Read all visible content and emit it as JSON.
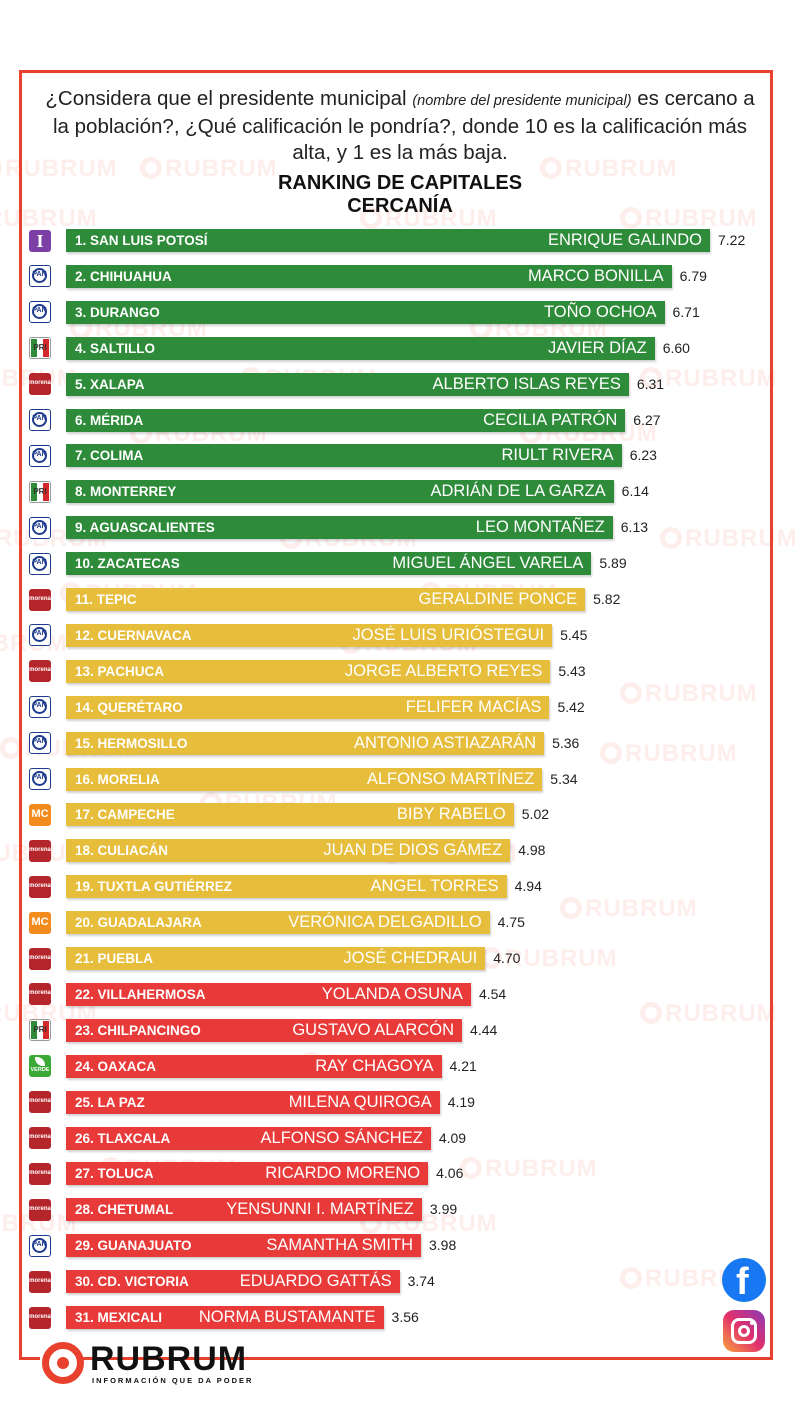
{
  "question": {
    "before": "¿Considera que el presidente municipal ",
    "note": "(nombre del presidente municipal)",
    "after": " es cercano a la población?, ¿Qué calificación le pondría?, donde 10 es la calificación más alta, y 1 es la más baja."
  },
  "watermark_text": "RUBRUM",
  "brand": {
    "name": "RUBRUM",
    "tagline": "INFORMACIÓN QUE DA PODER"
  },
  "social": {
    "facebook_glyph": "f",
    "icons": [
      "facebook-icon",
      "instagram-icon"
    ]
  },
  "colors": {
    "green": "#2e8b3a",
    "yellow": "#e7bd3c",
    "red": "#e93a3a",
    "accent": "#e8412d"
  },
  "party_logos": {
    "pan": "PAN",
    "morena": "morena",
    "pri": "PRI",
    "ind": "I",
    "mc": "MC",
    "verde": "VERDE"
  },
  "chart_data": {
    "type": "bar",
    "orientation": "horizontal",
    "title": "RANKING DE CAPITALES",
    "subtitle": "CERCANÍA",
    "xlim": [
      0,
      7.22
    ],
    "color_groups": {
      "green": [
        1,
        10
      ],
      "yellow": [
        11,
        21
      ],
      "red": [
        22,
        31
      ]
    },
    "bars": [
      {
        "rank": "1. SAN LUIS POTOSÍ",
        "person": "ENRIQUE GALINDO",
        "value": 7.22,
        "party": "ind",
        "group": "green"
      },
      {
        "rank": "2. CHIHUAHUA",
        "person": "MARCO BONILLA",
        "value": 6.79,
        "party": "pan",
        "group": "green"
      },
      {
        "rank": "3. DURANGO",
        "person": "TOÑO OCHOA",
        "value": 6.71,
        "party": "pan",
        "group": "green"
      },
      {
        "rank": "4. SALTILLO",
        "person": "JAVIER DÍAZ",
        "value": 6.6,
        "party": "pri",
        "group": "green"
      },
      {
        "rank": "5. XALAPA",
        "person": "ALBERTO ISLAS REYES",
        "value": 6.31,
        "party": "morena",
        "group": "green"
      },
      {
        "rank": "6. MÉRIDA",
        "person": "CECILIA PATRÓN",
        "value": 6.27,
        "party": "pan",
        "group": "green"
      },
      {
        "rank": "7. COLIMA",
        "person": "RIULT RIVERA",
        "value": 6.23,
        "party": "pan",
        "group": "green"
      },
      {
        "rank": "8. MONTERREY",
        "person": "ADRIÁN DE LA GARZA",
        "value": 6.14,
        "party": "pri",
        "group": "green"
      },
      {
        "rank": "9. AGUASCALIENTES",
        "person": "LEO MONTAÑEZ",
        "value": 6.13,
        "party": "pan",
        "group": "green"
      },
      {
        "rank": "10. ZACATECAS",
        "person": "MIGUEL ÁNGEL VARELA",
        "value": 5.89,
        "party": "pan",
        "group": "green"
      },
      {
        "rank": "11. TEPIC",
        "person": "GERALDINE PONCE",
        "value": 5.82,
        "party": "morena",
        "group": "yellow"
      },
      {
        "rank": "12. CUERNAVACA",
        "person": "JOSÉ LUIS URIÓSTEGUI",
        "value": 5.45,
        "party": "pan",
        "group": "yellow"
      },
      {
        "rank": "13. PACHUCA",
        "person": "JORGE ALBERTO REYES",
        "value": 5.43,
        "party": "morena",
        "group": "yellow"
      },
      {
        "rank": "14. QUERÉTARO",
        "person": "FELIFER MACÍAS",
        "value": 5.42,
        "party": "pan",
        "group": "yellow"
      },
      {
        "rank": "15. HERMOSILLO",
        "person": "ANTONIO ASTIAZARÁN",
        "value": 5.36,
        "party": "pan",
        "group": "yellow"
      },
      {
        "rank": "16. MORELIA",
        "person": "ALFONSO MARTÍNEZ",
        "value": 5.34,
        "party": "pan",
        "group": "yellow"
      },
      {
        "rank": "17. CAMPECHE",
        "person": "BIBY RABELO",
        "value": 5.02,
        "party": "mc",
        "group": "yellow"
      },
      {
        "rank": "18. CULIACÁN",
        "person": "JUAN DE DIOS GÁMEZ",
        "value": 4.98,
        "party": "morena",
        "group": "yellow"
      },
      {
        "rank": "19. TUXTLA GUTIÉRREZ",
        "person": "ANGEL TORRES",
        "value": 4.94,
        "party": "morena",
        "group": "yellow"
      },
      {
        "rank": "20. GUADALAJARA",
        "person": "VERÓNICA DELGADILLO",
        "value": 4.75,
        "party": "mc",
        "group": "yellow"
      },
      {
        "rank": "21. PUEBLA",
        "person": "JOSÉ CHEDRAUI",
        "value": 4.7,
        "party": "morena",
        "group": "yellow"
      },
      {
        "rank": "22. VILLAHERMOSA",
        "person": "YOLANDA OSUNA",
        "value": 4.54,
        "party": "morena",
        "group": "red"
      },
      {
        "rank": "23. CHILPANCINGO",
        "person": "GUSTAVO ALARCÓN",
        "value": 4.44,
        "party": "pri",
        "group": "red"
      },
      {
        "rank": "24. OAXACA",
        "person": "RAY CHAGOYA",
        "value": 4.21,
        "party": "verde",
        "group": "red"
      },
      {
        "rank": "25. LA PAZ",
        "person": "MILENA QUIROGA",
        "value": 4.19,
        "party": "morena",
        "group": "red"
      },
      {
        "rank": "26. TLAXCALA",
        "person": "ALFONSO SÁNCHEZ",
        "value": 4.09,
        "party": "morena",
        "group": "red"
      },
      {
        "rank": "27. TOLUCA",
        "person": "RICARDO MORENO",
        "value": 4.06,
        "party": "morena",
        "group": "red"
      },
      {
        "rank": "28. CHETUMAL",
        "person": "YENSUNNI I. MARTÍNEZ",
        "value": 3.99,
        "party": "morena",
        "group": "red"
      },
      {
        "rank": "29. GUANAJUATO",
        "person": "SAMANTHA SMITH",
        "value": 3.98,
        "party": "pan",
        "group": "red"
      },
      {
        "rank": "30. CD. VICTORIA",
        "person": "EDUARDO GATTÁS",
        "value": 3.74,
        "party": "morena",
        "group": "red"
      },
      {
        "rank": "31. MEXICALI",
        "person": "NORMA BUSTAMANTE",
        "value": 3.56,
        "party": "morena",
        "group": "red"
      }
    ]
  }
}
